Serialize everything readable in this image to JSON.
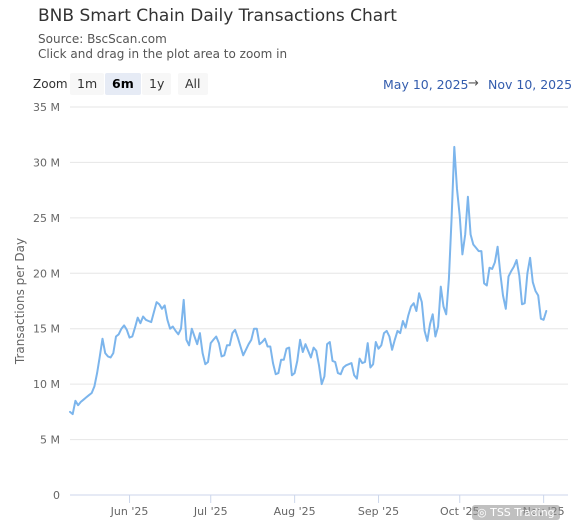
{
  "header": {
    "title": "BNB Smart Chain Daily Transactions Chart",
    "source": "Source: BscScan.com",
    "hint": "Click and drag in the plot area to zoom in"
  },
  "zoom": {
    "label": "Zoom",
    "buttons": [
      "1m",
      "6m",
      "1y",
      "All"
    ],
    "selected": "6m"
  },
  "range": {
    "from": "May 10, 2025",
    "arrow": "→",
    "to": "Nov 10, 2025"
  },
  "watermark": "TSS Trading",
  "colors": {
    "line": "#7cb5ec",
    "grid": "#e6e6e6",
    "range_text": "#335cad"
  },
  "chart_data": {
    "type": "line",
    "title": "BNB Smart Chain Daily Transactions Chart",
    "ylabel": "Transactions per Day",
    "xlabel": "",
    "ylim": [
      0,
      35000000
    ],
    "yticks": [
      0,
      5000000,
      10000000,
      15000000,
      20000000,
      25000000,
      30000000,
      35000000
    ],
    "ytick_labels": [
      "0",
      "5 M",
      "10 M",
      "15 M",
      "20 M",
      "25 M",
      "30 M",
      "35 M"
    ],
    "xlim": [
      "2025-05-10",
      "2025-11-10"
    ],
    "xtick_labels": [
      {
        "date": "2025-06-01",
        "label": "Jun '25"
      },
      {
        "date": "2025-07-01",
        "label": "Jul '25"
      },
      {
        "date": "2025-08-01",
        "label": "Aug '25"
      },
      {
        "date": "2025-09-01",
        "label": "Sep '25"
      },
      {
        "date": "2025-10-01",
        "label": "Oct '25"
      },
      {
        "date": "2025-11-01",
        "label": "Nov '25"
      }
    ],
    "grid": true,
    "start_date": "2025-05-10",
    "series": [
      {
        "name": "",
        "values": [
          7500000,
          7300000,
          8500000,
          8100000,
          8400000,
          8600000,
          8800000,
          9000000,
          9200000,
          9800000,
          11000000,
          12500000,
          14100000,
          12800000,
          12500000,
          12400000,
          12800000,
          14300000,
          14500000,
          15000000,
          15300000,
          14900000,
          14200000,
          14300000,
          15100000,
          16000000,
          15500000,
          16100000,
          15800000,
          15700000,
          15600000,
          16500000,
          17400000,
          17200000,
          16800000,
          17100000,
          15800000,
          15000000,
          15200000,
          14800000,
          14500000,
          15000000,
          17600000,
          14000000,
          13500000,
          15000000,
          14300000,
          13600000,
          14600000,
          12800000,
          11800000,
          12000000,
          13700000,
          14000000,
          14300000,
          13700000,
          12500000,
          12600000,
          13500000,
          13500000,
          14600000,
          14900000,
          14200000,
          13400000,
          12600000,
          13100000,
          13600000,
          14000000,
          15000000,
          15000000,
          13600000,
          13800000,
          14100000,
          13400000,
          13400000,
          11900000,
          10900000,
          11000000,
          12200000,
          12200000,
          13200000,
          13300000,
          10800000,
          11000000,
          12100000,
          14000000,
          12900000,
          13600000,
          13000000,
          12400000,
          13300000,
          13000000,
          11700000,
          10000000,
          10700000,
          13600000,
          13800000,
          12100000,
          12000000,
          11000000,
          10900000,
          11500000,
          11700000,
          11800000,
          11900000,
          10800000,
          10500000,
          12300000,
          11900000,
          12000000,
          13700000,
          11500000,
          11800000,
          13800000,
          13200000,
          13500000,
          14600000,
          14800000,
          14300000,
          13100000,
          14000000,
          14800000,
          14600000,
          15700000,
          15100000,
          16200000,
          17000000,
          17300000,
          16600000,
          18200000,
          17400000,
          14800000,
          13900000,
          15400000,
          16300000,
          14300000,
          15200000,
          18800000,
          17000000,
          16300000,
          19500000,
          25000000,
          31400000,
          27600000,
          25200000,
          21700000,
          23500000,
          26900000,
          23500000,
          22600000,
          22300000,
          22000000,
          22000000,
          19100000,
          18900000,
          20500000,
          20400000,
          21000000,
          22400000,
          20000000,
          18000000,
          16800000,
          19700000,
          20200000,
          20600000,
          21200000,
          19800000,
          17200000,
          17300000,
          20000000,
          21400000,
          19200000,
          18400000,
          18000000,
          15900000,
          15800000,
          16600000
        ]
      }
    ]
  }
}
